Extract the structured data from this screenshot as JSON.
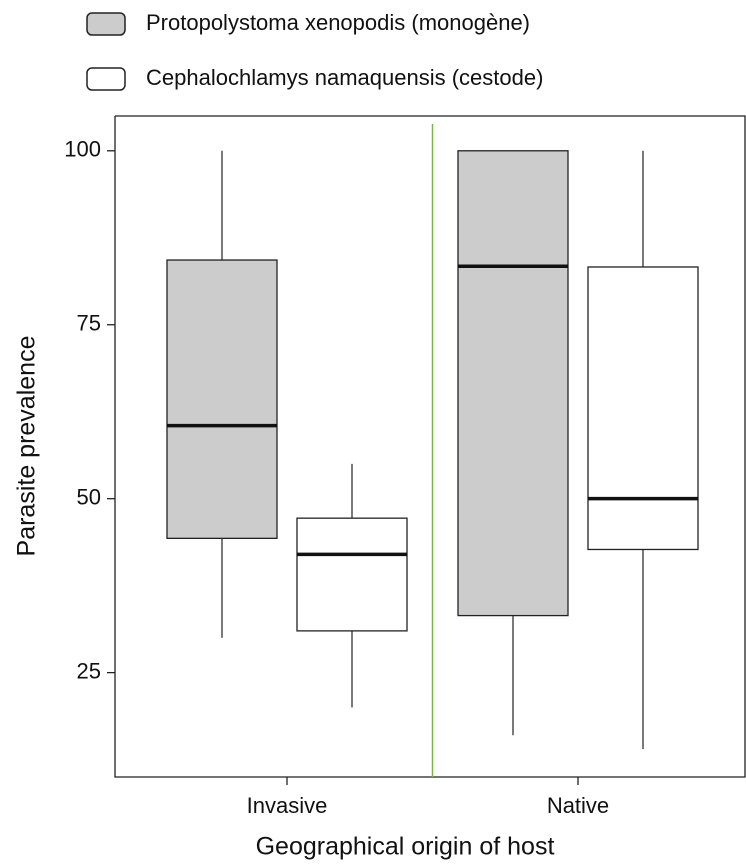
{
  "chart_data": {
    "type": "box",
    "x_label": "Geographical origin of host",
    "y_label": "Parasite prevalence",
    "categories": [
      "Invasive",
      "Native"
    ],
    "series": [
      {
        "name": "Protopolystoma xenopodis (monogène)",
        "color": "#cccccc",
        "min": [
          30,
          16
        ],
        "q1": [
          44.3,
          33.2
        ],
        "median": [
          60.5,
          83.4
        ],
        "q3": [
          84.3,
          100
        ],
        "max": [
          100,
          100
        ]
      },
      {
        "name": "Cephalochlamys namaquensis (cestode)",
        "color": "#ffffff",
        "min": [
          20,
          14
        ],
        "q1": [
          31,
          42.7
        ],
        "median": [
          42,
          50
        ],
        "q3": [
          47.2,
          83.3
        ],
        "max": [
          55,
          100
        ]
      }
    ],
    "ylim": [
      10,
      105
    ],
    "yticks": [
      25,
      50,
      75,
      100
    ],
    "divider_color": "#7cb342"
  }
}
